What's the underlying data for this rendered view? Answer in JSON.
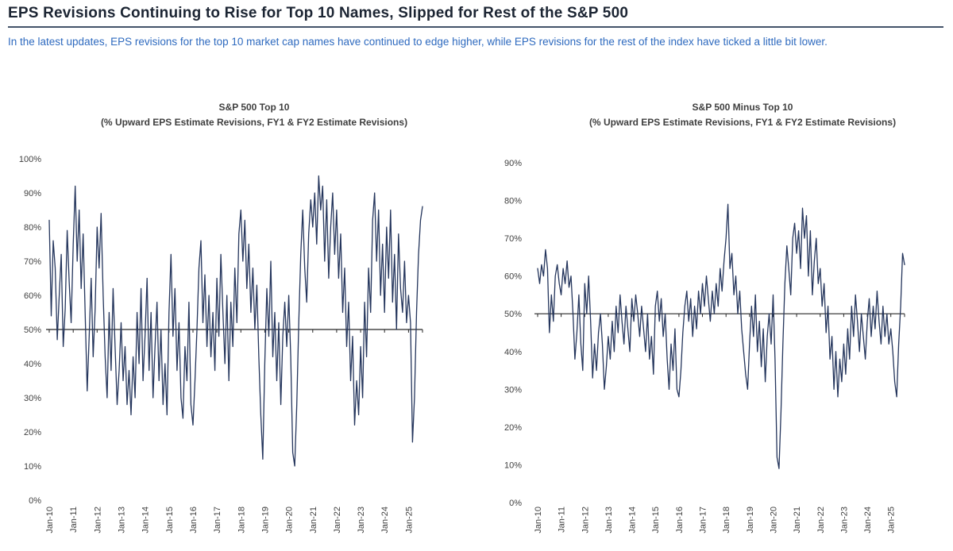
{
  "header": {
    "title": "EPS Revisions Continuing to Rise for Top 10 Names, Slipped for Rest of the S&P 500",
    "subtitle": "In the latest updates, EPS revisions for the top 10 market cap names have continued to edge higher, while EPS revisions for the rest of the index have ticked a little bit lower."
  },
  "colors": {
    "title_text": "#1c2533",
    "title_rule": "#44546a",
    "subtitle_text": "#2e6abf",
    "chart_title_text": "#3f3f3f",
    "axis_label_text": "#404040",
    "line": "#24355c",
    "axis_line": "#262626"
  },
  "chart_data": [
    {
      "type": "line",
      "title": "S&P 500 Top 10",
      "subtitle": "(% Upward EPS Estimate Revisions, FY1 & FY2 Estimate Revisions)",
      "x_start": "Jan-10",
      "x_interval": "monthly",
      "x_tick_labels": [
        "Jan-10",
        "Jan-11",
        "Jan-12",
        "Jan-13",
        "Jan-14",
        "Jan-15",
        "Jan-16",
        "Jan-17",
        "Jan-18",
        "Jan-19",
        "Jan-20",
        "Jan-21",
        "Jan-22",
        "Jan-23",
        "Jan-24",
        "Jan-25"
      ],
      "ylim": [
        0,
        100
      ],
      "y_tick_step": 10,
      "axis_cross_y": 50,
      "grid": false,
      "legend": "none",
      "series": [
        {
          "name": "% Upward EPS Estimate Revisions (FY1 & FY2)",
          "values": [
            82,
            54,
            76,
            68,
            47,
            60,
            72,
            45,
            56,
            79,
            64,
            52,
            75,
            92,
            70,
            85,
            62,
            78,
            55,
            32,
            48,
            65,
            42,
            56,
            80,
            68,
            84,
            60,
            42,
            30,
            55,
            38,
            62,
            45,
            28,
            38,
            52,
            35,
            45,
            28,
            38,
            25,
            42,
            30,
            55,
            40,
            62,
            35,
            48,
            65,
            38,
            55,
            30,
            45,
            58,
            35,
            50,
            28,
            40,
            25,
            55,
            72,
            48,
            62,
            38,
            52,
            30,
            24,
            45,
            35,
            58,
            28,
            22,
            35,
            50,
            68,
            76,
            52,
            66,
            45,
            60,
            42,
            55,
            38,
            65,
            48,
            72,
            55,
            40,
            60,
            35,
            58,
            45,
            68,
            52,
            78,
            85,
            70,
            82,
            62,
            75,
            55,
            68,
            50,
            63,
            42,
            25,
            12,
            40,
            62,
            48,
            70,
            42,
            55,
            35,
            52,
            28,
            48,
            58,
            45,
            60,
            42,
            14,
            10,
            28,
            52,
            72,
            85,
            68,
            58,
            78,
            88,
            80,
            90,
            75,
            95,
            85,
            92,
            70,
            88,
            65,
            80,
            90,
            72,
            85,
            65,
            78,
            55,
            68,
            45,
            58,
            35,
            48,
            22,
            35,
            25,
            45,
            30,
            58,
            42,
            68,
            55,
            82,
            90,
            70,
            85,
            60,
            75,
            55,
            80,
            65,
            85,
            58,
            72,
            50,
            78,
            62,
            55,
            70,
            52,
            60,
            52,
            17,
            30,
            55,
            72,
            82,
            86
          ]
        }
      ]
    },
    {
      "type": "line",
      "title": "S&P 500 Minus Top 10",
      "subtitle": "(% Upward EPS Estimate Revisions, FY1 & FY2 Estimate Revisions)",
      "x_start": "Jan-10",
      "x_interval": "monthly",
      "x_tick_labels": [
        "Jan-10",
        "Jan-11",
        "Jan-12",
        "Jan-13",
        "Jan-14",
        "Jan-15",
        "Jan-16",
        "Jan-17",
        "Jan-18",
        "Jan-19",
        "Jan-20",
        "Jan-21",
        "Jan-22",
        "Jan-23",
        "Jan-24",
        "Jan-25"
      ],
      "ylim": [
        0,
        90
      ],
      "y_tick_step": 10,
      "axis_cross_y": 50,
      "grid": false,
      "legend": "none",
      "series": [
        {
          "name": "% Upward EPS Estimate Revisions (FY1 & FY2)",
          "values": [
            62,
            58,
            63,
            60,
            67,
            62,
            45,
            55,
            48,
            60,
            63,
            58,
            55,
            62,
            58,
            64,
            57,
            60,
            50,
            38,
            45,
            55,
            42,
            35,
            58,
            50,
            60,
            48,
            33,
            42,
            35,
            45,
            50,
            42,
            30,
            36,
            44,
            38,
            48,
            40,
            52,
            45,
            55,
            48,
            42,
            52,
            46,
            40,
            54,
            48,
            55,
            50,
            44,
            52,
            46,
            40,
            50,
            38,
            44,
            34,
            52,
            56,
            48,
            54,
            44,
            50,
            38,
            30,
            42,
            35,
            46,
            30,
            28,
            35,
            45,
            52,
            56,
            48,
            54,
            44,
            52,
            46,
            56,
            50,
            58,
            52,
            60,
            54,
            48,
            56,
            50,
            58,
            52,
            62,
            56,
            64,
            70,
            79,
            62,
            66,
            55,
            60,
            50,
            56,
            46,
            40,
            34,
            30,
            42,
            52,
            44,
            55,
            40,
            48,
            36,
            46,
            32,
            44,
            50,
            42,
            55,
            38,
            12,
            9,
            24,
            42,
            58,
            68,
            62,
            55,
            70,
            74,
            66,
            72,
            62,
            78,
            70,
            76,
            60,
            72,
            55,
            64,
            70,
            58,
            62,
            52,
            58,
            45,
            52,
            38,
            44,
            30,
            40,
            28,
            38,
            32,
            42,
            34,
            46,
            38,
            52,
            44,
            55,
            48,
            40,
            50,
            44,
            38,
            48,
            54,
            44,
            52,
            46,
            56,
            48,
            42,
            52,
            44,
            50,
            42,
            46,
            40,
            32,
            28,
            42,
            52,
            66,
            63
          ]
        }
      ]
    }
  ]
}
